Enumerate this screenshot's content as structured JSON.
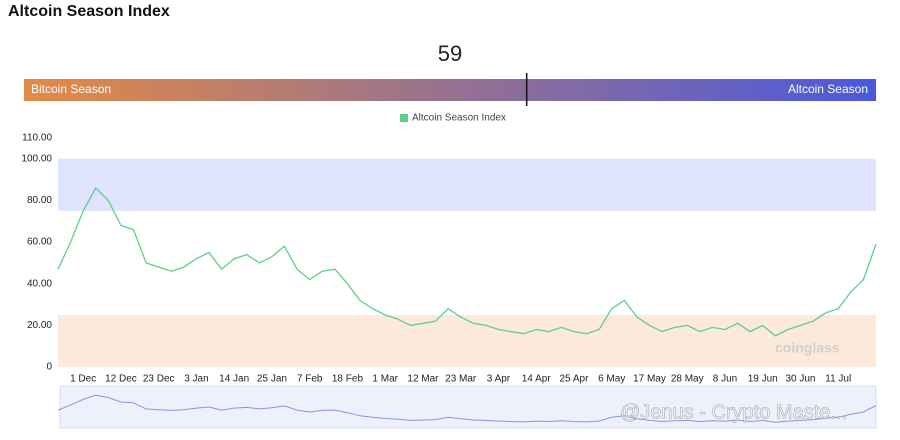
{
  "title": "Altcoin Season Index",
  "gauge": {
    "value": 59,
    "range": [
      0,
      100
    ],
    "left_label": "Bitcoin Season",
    "right_label": "Altcoin Season",
    "colors": [
      "#e38b45",
      "#4b58dc"
    ]
  },
  "chart_data": {
    "type": "line",
    "legend": "Altcoin Season Index",
    "categories": [
      null,
      null,
      "1 Dec",
      null,
      null,
      "12 Dec",
      null,
      null,
      "23 Dec",
      null,
      null,
      "3 Jan",
      null,
      null,
      "14 Jan",
      null,
      null,
      "25 Jan",
      null,
      null,
      "7 Feb",
      null,
      null,
      "18 Feb",
      null,
      null,
      "1 Mar",
      null,
      null,
      "12 Mar",
      null,
      null,
      "23 Mar",
      null,
      null,
      "3 Apr",
      null,
      null,
      "14 Apr",
      null,
      null,
      "25 Apr",
      null,
      null,
      "6 May",
      null,
      null,
      "17 May",
      null,
      null,
      "28 May",
      null,
      null,
      "8 Jun",
      null,
      null,
      "19 Jun",
      null,
      null,
      "30 Jun",
      null,
      null,
      "11 Jul",
      null,
      null,
      null
    ],
    "series": [
      {
        "name": "Altcoin Season Index",
        "color": "#5cd08a",
        "values": [
          47,
          60,
          75,
          86,
          80,
          68,
          66,
          50,
          48,
          46,
          48,
          52,
          55,
          47,
          52,
          54,
          50,
          53,
          58,
          47,
          42,
          46,
          47,
          40,
          32,
          28,
          25,
          23,
          20,
          21,
          22,
          28,
          24,
          21,
          20,
          18,
          17,
          16,
          18,
          17,
          19,
          17,
          16,
          18,
          28,
          32,
          24,
          20,
          17,
          19,
          20,
          17,
          19,
          18,
          21,
          17,
          20,
          15,
          18,
          20,
          22,
          26,
          28,
          36,
          42,
          59
        ]
      }
    ],
    "bands": [
      {
        "from": 75,
        "to": 100,
        "color": "#dfe3fb"
      },
      {
        "from": 0,
        "to": 25,
        "color": "#fbe9dc"
      }
    ],
    "ylim": [
      0,
      110
    ],
    "yticks": [
      0,
      {
        "value": 20,
        "label": "20.00"
      },
      {
        "value": 40,
        "label": "40.00"
      },
      {
        "value": 60,
        "label": "60.00"
      },
      {
        "value": 80,
        "label": "80.00"
      },
      {
        "value": 100,
        "label": "100.00"
      },
      {
        "value": 110,
        "label": "110.00"
      }
    ],
    "navigator_color": "#8796e3"
  },
  "watermarks": [
    "coinglass",
    "@Jenus - Crypto Maste..."
  ]
}
